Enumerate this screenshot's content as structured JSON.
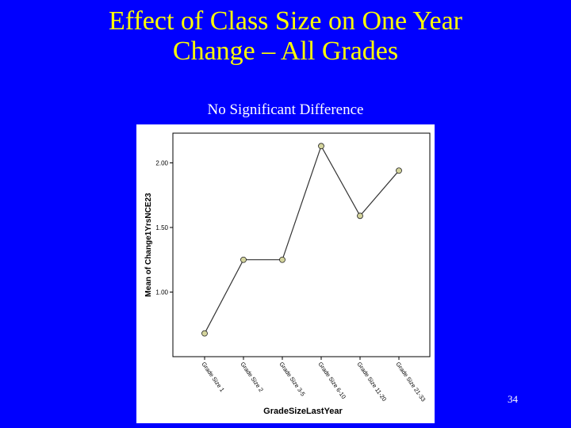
{
  "slide": {
    "title_line1": "Effect of Class Size on One Year",
    "title_line2": "Change – All Grades",
    "subtitle": "No Significant Difference",
    "page_number": "34"
  },
  "colors": {
    "background": "#0000ff",
    "title": "#ffff00",
    "text": "#ffffff",
    "marker_fill": "#d4d49c",
    "line": "#333333"
  },
  "chart_data": {
    "type": "line",
    "title": "",
    "xlabel": "GradeSizeLastYear",
    "ylabel": "Mean of Change1YrsNCE23",
    "categories": [
      "Grade Size 1",
      "Grade Size 2",
      "Grade Size 3-5",
      "Grade Size 6-10",
      "Grade Size 11-20",
      "Grade Size 21-33"
    ],
    "values": [
      0.68,
      1.25,
      1.25,
      2.13,
      1.59,
      1.94
    ],
    "ylim": [
      0.5,
      2.23
    ],
    "yticks": [
      1.0,
      1.5,
      2.0
    ],
    "ytick_labels": [
      "1.00",
      "1.50",
      "2.00"
    ],
    "grid": false,
    "legend": "none"
  }
}
